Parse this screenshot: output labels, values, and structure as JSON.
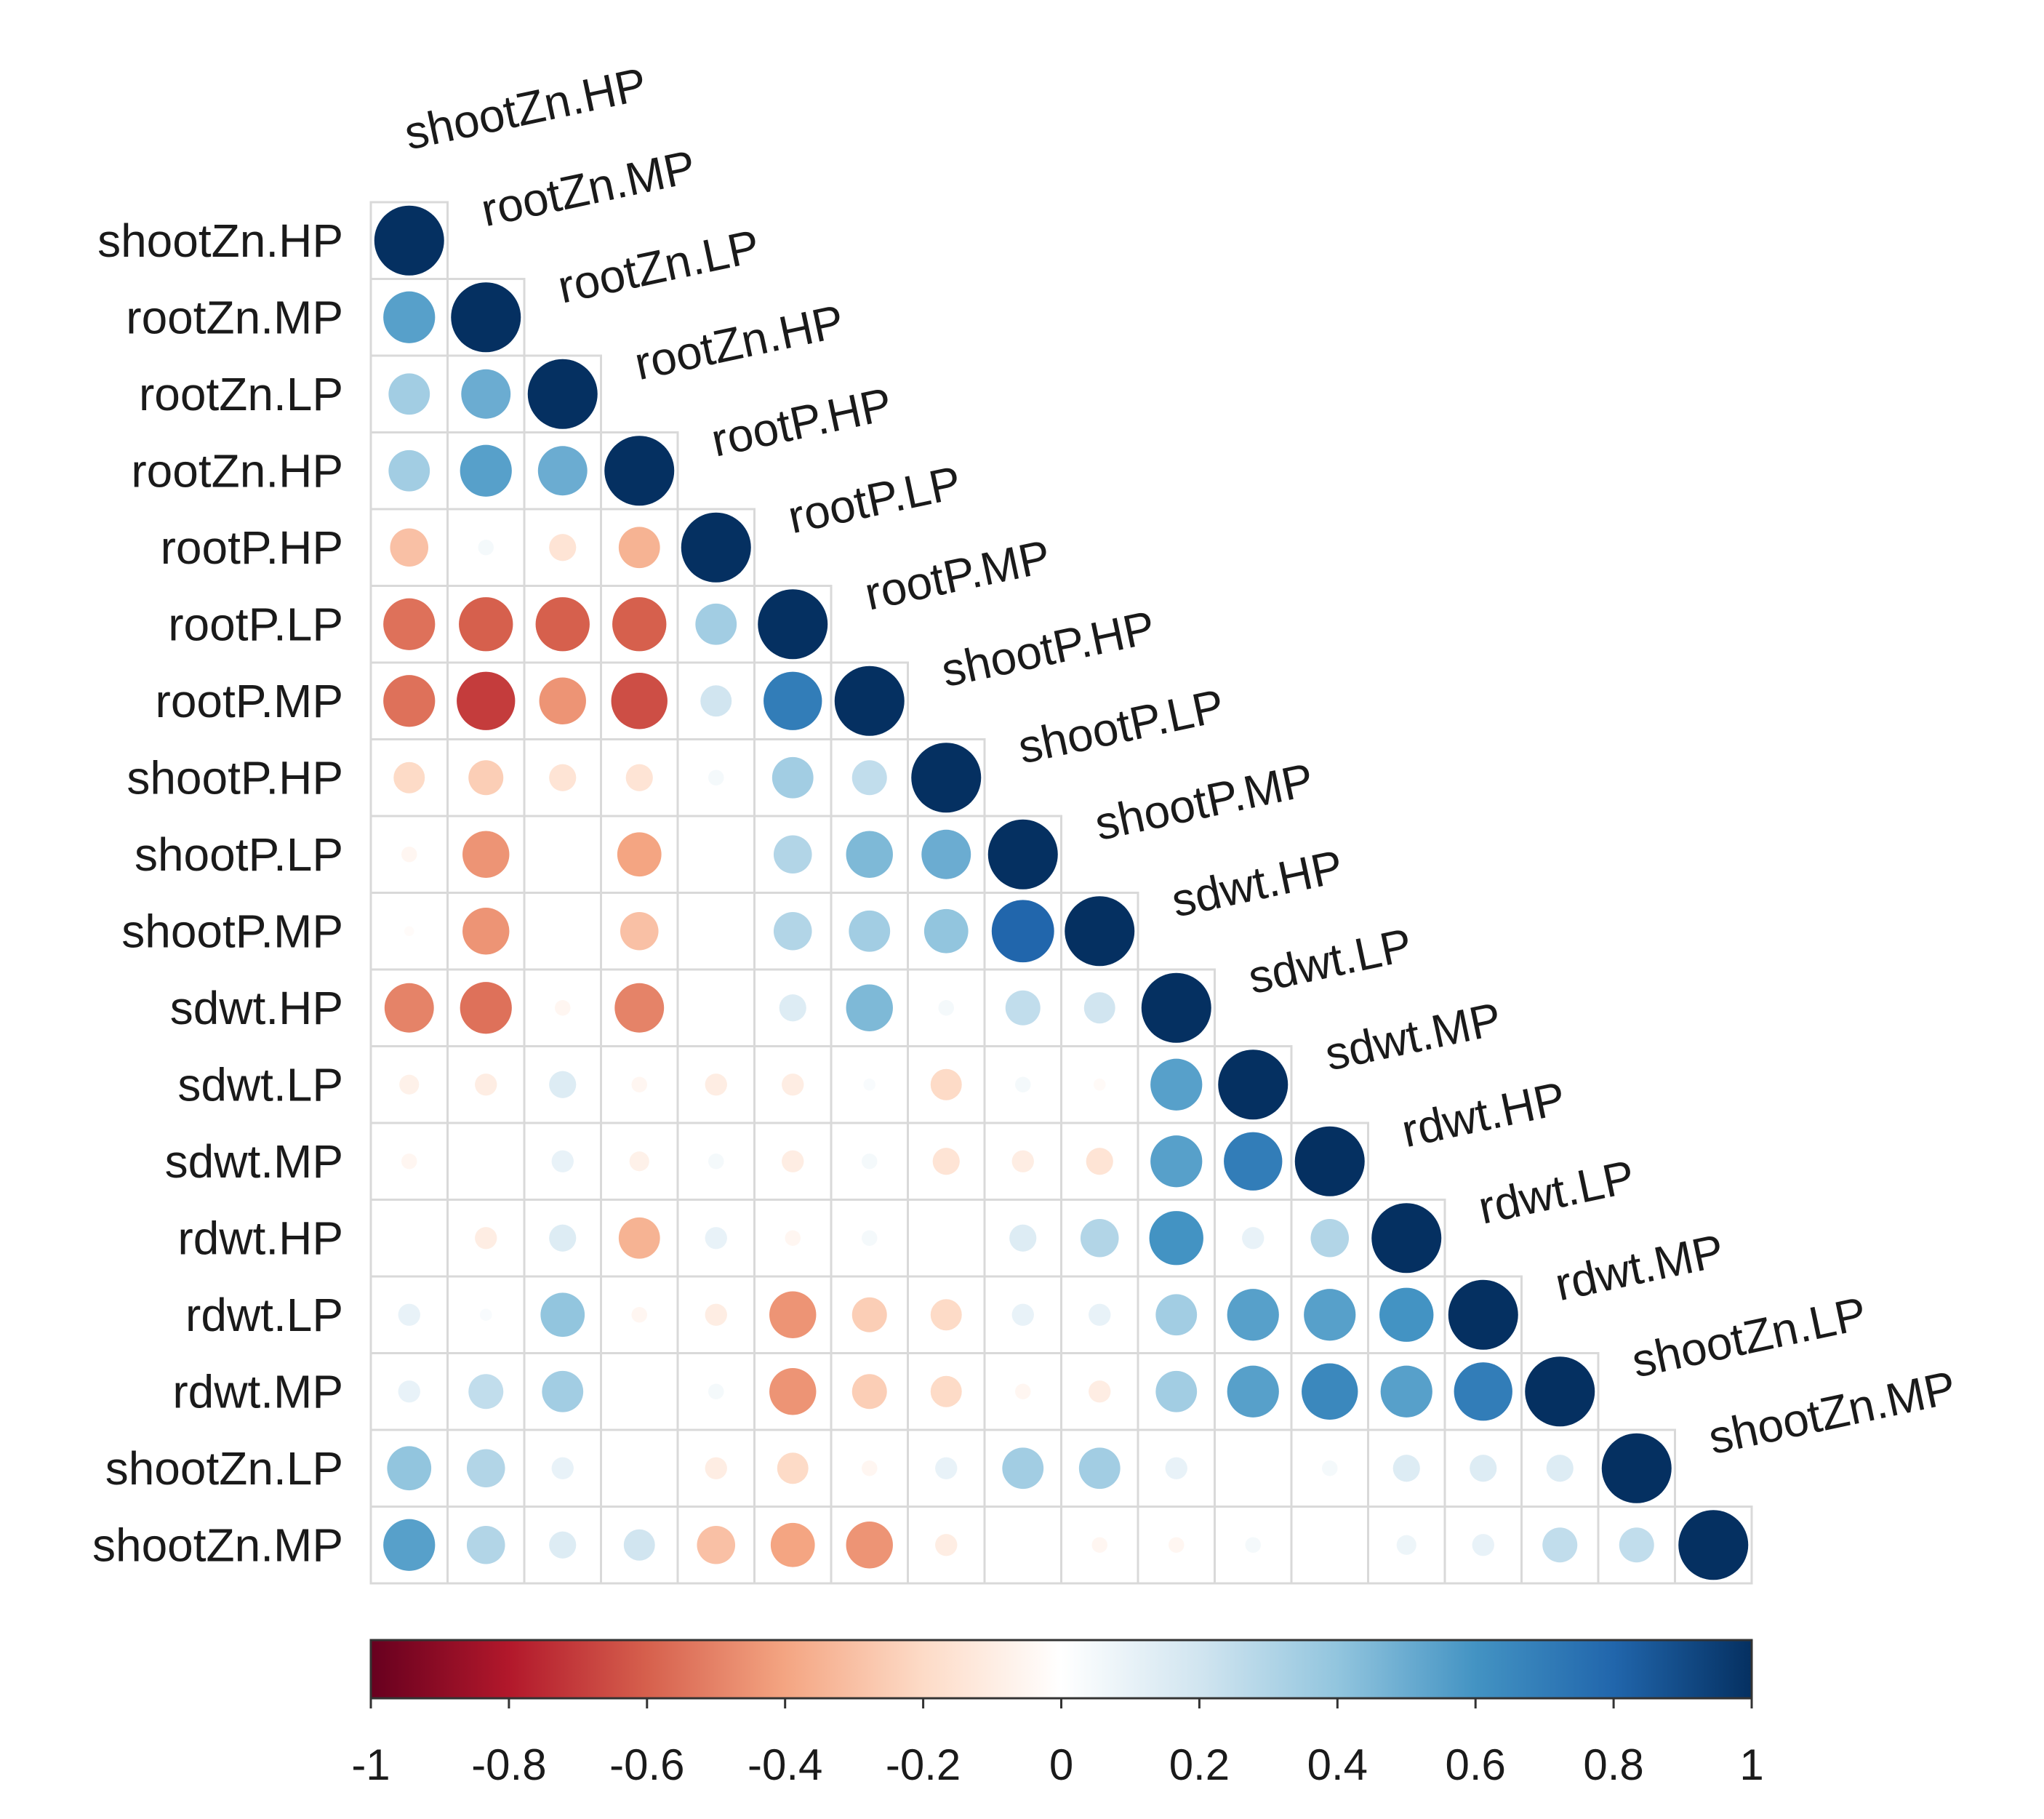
{
  "chart_data": {
    "type": "heatmap",
    "subtype": "correlation-matrix-lower-triangle-circles",
    "variables": [
      "shootZn.HP",
      "rootZn.MP",
      "rootZn.LP",
      "rootZn.HP",
      "rootP.HP",
      "rootP.LP",
      "rootP.MP",
      "shootP.HP",
      "shootP.LP",
      "shootP.MP",
      "sdwt.HP",
      "sdwt.LP",
      "sdwt.MP",
      "rdwt.HP",
      "rdwt.LP",
      "rdwt.MP",
      "shootZn.LP",
      "shootZn.MP"
    ],
    "matrix": [
      [
        1
      ],
      [
        0.55,
        1
      ],
      [
        0.35,
        0.5,
        1
      ],
      [
        0.35,
        0.55,
        0.5,
        1
      ],
      [
        -0.3,
        0.05,
        -0.15,
        -0.35,
        1
      ],
      [
        -0.55,
        -0.6,
        -0.6,
        -0.6,
        0.35,
        1
      ],
      [
        -0.55,
        -0.7,
        -0.45,
        -0.65,
        0.2,
        0.7,
        1
      ],
      [
        -0.2,
        -0.25,
        -0.15,
        -0.15,
        0.05,
        0.35,
        0.25,
        1
      ],
      [
        -0.05,
        -0.45,
        0,
        -0.4,
        0,
        0.3,
        0.45,
        0.5,
        1
      ],
      [
        -0.02,
        -0.45,
        0,
        -0.3,
        0,
        0.3,
        0.35,
        0.4,
        0.8,
        1
      ],
      [
        -0.5,
        -0.55,
        -0.05,
        -0.5,
        0,
        0.15,
        0.45,
        0.05,
        0.25,
        0.2,
        1
      ],
      [
        -0.08,
        -0.1,
        0.15,
        -0.05,
        -0.1,
        -0.1,
        0.03,
        -0.2,
        0.05,
        -0.03,
        0.55,
        1
      ],
      [
        -0.05,
        0,
        0.1,
        -0.08,
        0.05,
        -0.1,
        0.05,
        -0.15,
        -0.1,
        -0.15,
        0.55,
        0.7,
        1
      ],
      [
        0,
        -0.1,
        0.15,
        -0.35,
        0.1,
        -0.05,
        0.05,
        0,
        0.15,
        0.3,
        0.6,
        0.1,
        0.3,
        1
      ],
      [
        0.1,
        0.03,
        0.4,
        -0.05,
        -0.1,
        -0.45,
        -0.25,
        -0.2,
        0.1,
        0.1,
        0.35,
        0.55,
        0.55,
        0.6,
        1
      ],
      [
        0.1,
        0.25,
        0.35,
        0,
        0.05,
        -0.45,
        -0.25,
        -0.2,
        -0.05,
        -0.1,
        0.35,
        0.55,
        0.65,
        0.55,
        0.7,
        1
      ],
      [
        0.4,
        0.3,
        0.1,
        0,
        -0.1,
        -0.2,
        -0.05,
        0.1,
        0.35,
        0.35,
        0.1,
        0,
        0.05,
        0.15,
        0.15,
        0.15,
        1
      ],
      [
        0.55,
        0.3,
        0.15,
        0.2,
        -0.3,
        -0.4,
        -0.45,
        -0.1,
        0,
        -0.05,
        -0.05,
        0.05,
        0,
        0.08,
        0.1,
        0.25,
        0.25,
        1
      ]
    ],
    "colorbar": {
      "range": [
        -1,
        1
      ],
      "ticks": [
        "-1",
        "-0.8",
        "-0.6",
        "-0.4",
        "-0.2",
        "0",
        "0.2",
        "0.4",
        "0.6",
        "0.8",
        "1"
      ]
    },
    "colors": {
      "neg_strong": "#67001F",
      "neg_mid": "#D6604D",
      "neutral": "#FFFFFF",
      "pos_mid": "#4393C3",
      "pos_strong": "#053061",
      "grid": "#d9d9d9"
    }
  }
}
